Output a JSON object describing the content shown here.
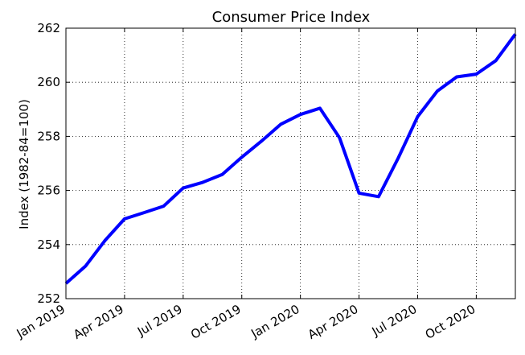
{
  "chart_data": {
    "type": "line",
    "title": "Consumer Price Index",
    "xlabel": "",
    "ylabel": "Index (1982-84=100)",
    "x_tick_labels": [
      "Jan 2019",
      "Apr 2019",
      "Jul 2019",
      "Oct 2019",
      "Jan 2020",
      "Apr 2020",
      "Jul 2020",
      "Oct 2020"
    ],
    "y_tick_labels": [
      "252",
      "254",
      "256",
      "258",
      "260",
      "262"
    ],
    "ylim": [
      252,
      262
    ],
    "xlim": [
      "Jan 2019",
      "Dec 2020"
    ],
    "grid": true,
    "series": [
      {
        "color": "#0000ff",
        "x": [
          "Jan 2019",
          "Feb 2019",
          "Mar 2019",
          "Apr 2019",
          "May 2019",
          "Jun 2019",
          "Jul 2019",
          "Aug 2019",
          "Sep 2019",
          "Oct 2019",
          "Nov 2019",
          "Dec 2019",
          "Jan 2020",
          "Feb 2020",
          "Mar 2020",
          "Apr 2020",
          "May 2020",
          "Jun 2020",
          "Jul 2020",
          "Aug 2020",
          "Sep 2020",
          "Oct 2020",
          "Nov 2020",
          "Dec 2020"
        ],
        "values": [
          252.56,
          253.2,
          254.15,
          254.95,
          255.18,
          255.42,
          256.09,
          256.3,
          256.59,
          257.23,
          257.82,
          258.45,
          258.81,
          259.04,
          257.95,
          255.9,
          255.77,
          257.19,
          258.73,
          259.67,
          260.2,
          260.3,
          260.8,
          261.78
        ]
      }
    ]
  }
}
